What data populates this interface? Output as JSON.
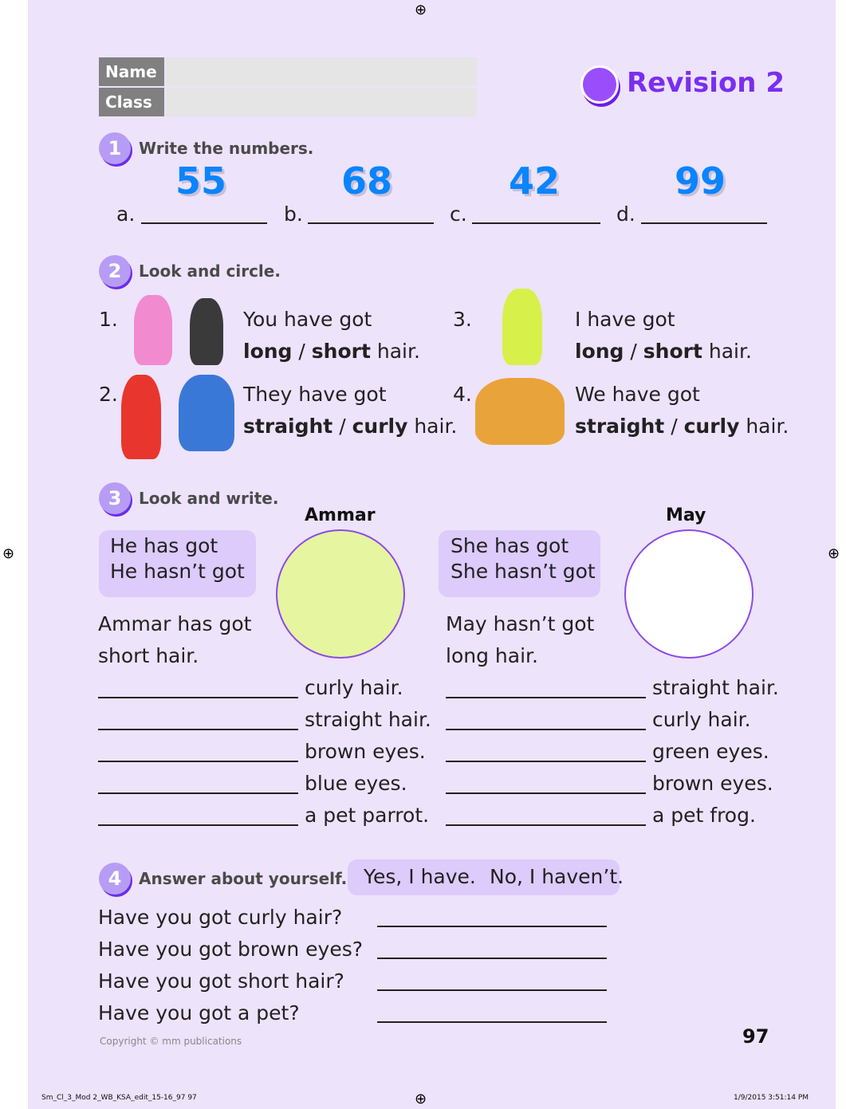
{
  "header": {
    "name_label": "Name",
    "class_label": "Class",
    "title": "Revision 2"
  },
  "ex1": {
    "number": "1",
    "instruction": "Write the numbers.",
    "items": [
      {
        "letter": "a.",
        "value": "55"
      },
      {
        "letter": "b.",
        "value": "68"
      },
      {
        "letter": "c.",
        "value": "42"
      },
      {
        "letter": "d.",
        "value": "99"
      }
    ]
  },
  "ex2": {
    "number": "2",
    "instruction": "Look and circle.",
    "items": [
      {
        "n": "1.",
        "line1": "You have got",
        "opt1": "long",
        "sep": " / ",
        "opt2": "short",
        "end": " hair."
      },
      {
        "n": "2.",
        "line1": "They have got",
        "opt1": "straight",
        "sep": " / ",
        "opt2": "curly",
        "end": " hair."
      },
      {
        "n": "3.",
        "line1": "I have got",
        "opt1": "long",
        "sep": " / ",
        "opt2": "short",
        "end": " hair."
      },
      {
        "n": "4.",
        "line1": "We have got",
        "opt1": "straight",
        "sep": " / ",
        "opt2": "curly",
        "end": " hair."
      }
    ]
  },
  "ex3": {
    "number": "3",
    "instruction": "Look and write.",
    "left": {
      "name": "Ammar",
      "box": [
        "He has got",
        "He hasn’t got"
      ],
      "example": [
        "Ammar has got",
        "short hair."
      ],
      "lines": [
        "curly hair.",
        "straight hair.",
        "brown eyes.",
        "blue eyes.",
        "a pet parrot."
      ]
    },
    "right": {
      "name": "May",
      "box": [
        "She has got",
        "She hasn’t got"
      ],
      "example": [
        "May hasn’t got",
        "long hair."
      ],
      "lines": [
        "straight hair.",
        "curly hair.",
        "green eyes.",
        "brown eyes.",
        "a pet frog."
      ]
    }
  },
  "ex4": {
    "number": "4",
    "instruction": "Answer about yourself.",
    "options": [
      "Yes, I have.",
      "No, I haven’t."
    ],
    "questions": [
      "Have you got curly hair?",
      "Have you got brown eyes?",
      "Have you got short hair?",
      "Have you got a pet?"
    ]
  },
  "footer": {
    "copyright": "Copyright © mm publications",
    "page": "97",
    "slug": "Sm_Cl_3_Mod 2_WB_KSA_edit_15-16_97   97",
    "date": "1/9/2015   3:51:14 PM"
  },
  "colors": {
    "background": "#ede3fb",
    "title": "#7a2ef0",
    "numbers": "#0a84ff"
  }
}
